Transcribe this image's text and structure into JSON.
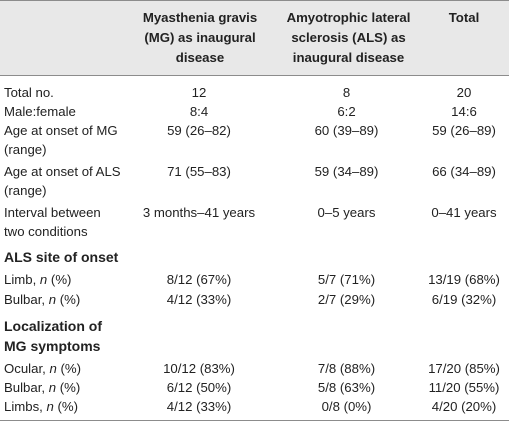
{
  "headers": [
    "Myasthenia gravis (MG) as inaugural disease",
    "Amyotrophic lateral sclerosis (ALS) as inaugural disease",
    "Total"
  ],
  "rows": [
    {
      "label": "Total no.",
      "values": [
        "12",
        "8",
        "20"
      ]
    },
    {
      "label": "Male:female",
      "values": [
        "8:4",
        "6:2",
        "14:6"
      ]
    },
    {
      "label": "Age at onset of MG (range)",
      "values": [
        "59 (26–82)",
        "60 (39–89)",
        "59 (26–89)"
      ]
    },
    {
      "label": "Age at onset of ALS (range)",
      "values": [
        "71 (55–83)",
        "59 (34–89)",
        "66 (34–89)"
      ]
    },
    {
      "label": "Interval between two conditions",
      "values": [
        "3 months–41 years",
        "0–5 years",
        "0–41 years"
      ]
    }
  ],
  "sections": [
    {
      "title": "ALS site of onset",
      "rows": [
        {
          "label": "Limb, ",
          "label_italic": "n",
          "label_suffix": " (%)",
          "values": [
            "8/12 (67%)",
            "5/7 (71%)",
            "13/19 (68%)"
          ]
        },
        {
          "label": "Bulbar, ",
          "label_italic": "n",
          "label_suffix": " (%)",
          "values": [
            "4/12 (33%)",
            "2/7 (29%)",
            "6/19 (32%)"
          ]
        }
      ]
    },
    {
      "title": "Localization of MG symptoms",
      "rows": [
        {
          "label": "Ocular, ",
          "label_italic": "n",
          "label_suffix": " (%)",
          "values": [
            "10/12 (83%)",
            "7/8 (88%)",
            "17/20 (85%)"
          ]
        },
        {
          "label": "Bulbar, ",
          "label_italic": "n",
          "label_suffix": " (%)",
          "values": [
            "6/12 (50%)",
            "5/8 (63%)",
            "11/20 (55%)"
          ]
        },
        {
          "label": "Limbs, ",
          "label_italic": "n",
          "label_suffix": " (%)",
          "values": [
            "4/12 (33%)",
            "0/8 (0%)",
            "4/20 (20%)"
          ]
        }
      ]
    }
  ],
  "colors": {
    "header_bg": "#e8e8e8",
    "rule": "#8c8c8c",
    "text": "#222222"
  }
}
